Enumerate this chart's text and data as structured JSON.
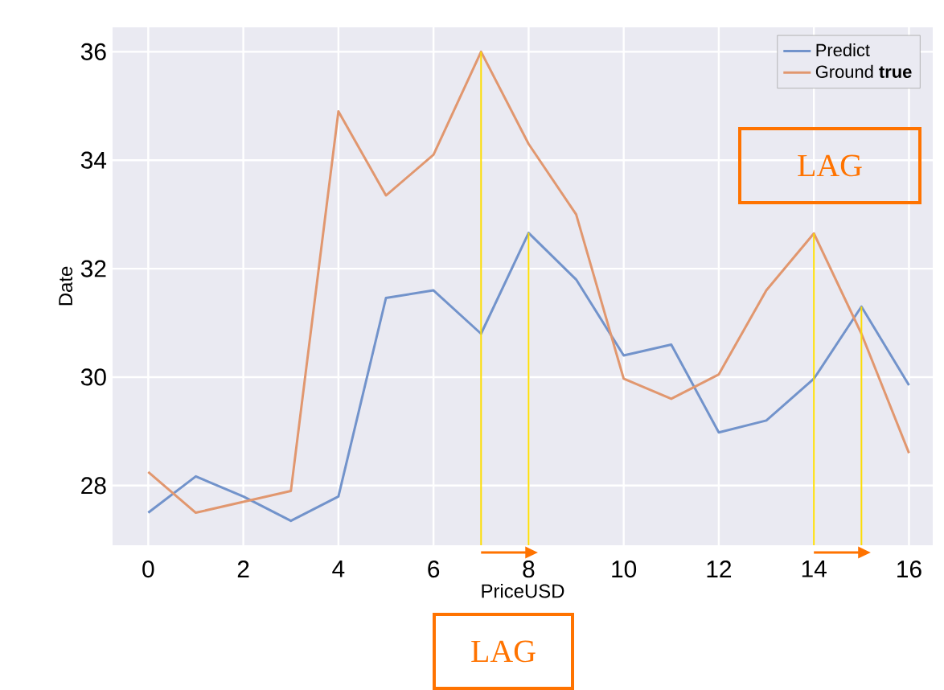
{
  "chart_data": {
    "type": "line",
    "xlabel": "PriceUSD",
    "ylabel": "Date",
    "x": [
      0,
      1,
      2,
      3,
      4,
      5,
      6,
      7,
      8,
      9,
      10,
      11,
      12,
      13,
      14,
      15,
      16
    ],
    "series": [
      {
        "name": "Predict",
        "color": "#7293cb",
        "values": [
          27.5,
          28.17,
          27.8,
          27.35,
          27.8,
          31.46,
          31.6,
          30.8,
          32.66,
          31.8,
          30.4,
          30.6,
          28.98,
          29.2,
          29.97,
          31.3,
          29.85
        ]
      },
      {
        "name": "Ground **true**",
        "color": "#e1976f",
        "values": [
          28.25,
          27.5,
          27.7,
          27.9,
          34.9,
          33.35,
          34.1,
          36,
          34.3,
          33.0,
          29.97,
          29.6,
          30.05,
          31.6,
          32.65,
          30.8,
          28.6
        ]
      },
      {
        "type": "line",
        "color": "#fddd04",
        "x": [
          7,
          7
        ],
        "values": [
          26.9,
          36
        ]
      },
      {
        "type": "line",
        "color": "#fddd04",
        "x": [
          8,
          8
        ],
        "values": [
          26.9,
          32.66
        ]
      },
      {
        "type": "line",
        "color": "#fddd04",
        "x": [
          14,
          14
        ],
        "values": [
          26.9,
          32.65
        ]
      },
      {
        "type": "line",
        "color": "#fddd04",
        "x": [
          15,
          15
        ],
        "values": [
          26.9,
          31.3
        ]
      }
    ],
    "xlim": [
      -0.75,
      16.5
    ],
    "ylim": [
      26.9,
      36.45
    ],
    "xticks": [
      0,
      2,
      4,
      6,
      8,
      10,
      12,
      14,
      16
    ],
    "yticks": [
      28,
      30,
      32,
      34,
      36
    ],
    "grid": true,
    "legend": "top right",
    "line_style": "solid",
    "marker": "none",
    "annotations": [
      "LAG",
      "LAG"
    ]
  }
}
